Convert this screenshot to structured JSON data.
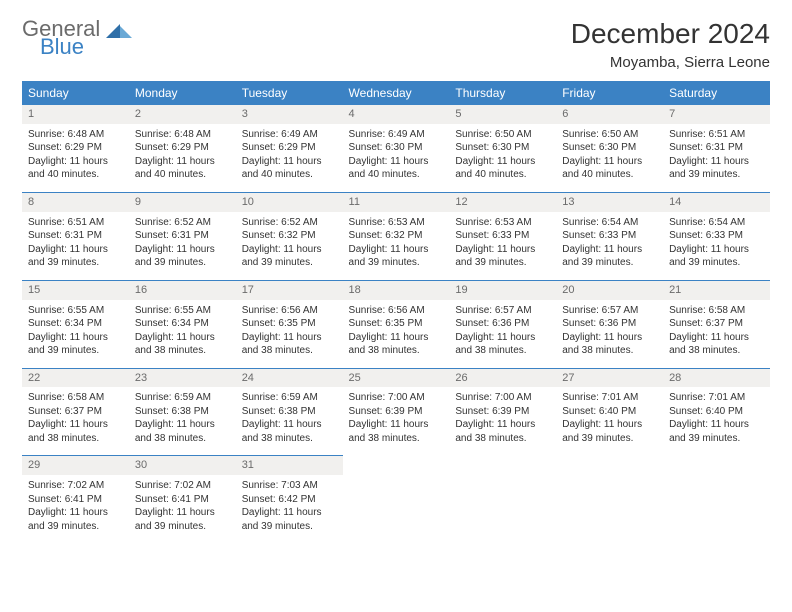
{
  "logo": {
    "word1": "General",
    "word2": "Blue"
  },
  "title": "December 2024",
  "location": "Moyamba, Sierra Leone",
  "colors": {
    "header_bg": "#3b82c4",
    "header_text": "#ffffff",
    "rule": "#3b82c4",
    "daynum_bg": "#f1f0ee",
    "daynum_text": "#6b6b6b",
    "body_text": "#333333",
    "logo_gray": "#6b6b6b",
    "logo_blue": "#3b82c4"
  },
  "weekdays": [
    "Sunday",
    "Monday",
    "Tuesday",
    "Wednesday",
    "Thursday",
    "Friday",
    "Saturday"
  ],
  "weeks": [
    [
      {
        "n": "1",
        "sr": "Sunrise: 6:48 AM",
        "ss": "Sunset: 6:29 PM",
        "d1": "Daylight: 11 hours",
        "d2": "and 40 minutes."
      },
      {
        "n": "2",
        "sr": "Sunrise: 6:48 AM",
        "ss": "Sunset: 6:29 PM",
        "d1": "Daylight: 11 hours",
        "d2": "and 40 minutes."
      },
      {
        "n": "3",
        "sr": "Sunrise: 6:49 AM",
        "ss": "Sunset: 6:29 PM",
        "d1": "Daylight: 11 hours",
        "d2": "and 40 minutes."
      },
      {
        "n": "4",
        "sr": "Sunrise: 6:49 AM",
        "ss": "Sunset: 6:30 PM",
        "d1": "Daylight: 11 hours",
        "d2": "and 40 minutes."
      },
      {
        "n": "5",
        "sr": "Sunrise: 6:50 AM",
        "ss": "Sunset: 6:30 PM",
        "d1": "Daylight: 11 hours",
        "d2": "and 40 minutes."
      },
      {
        "n": "6",
        "sr": "Sunrise: 6:50 AM",
        "ss": "Sunset: 6:30 PM",
        "d1": "Daylight: 11 hours",
        "d2": "and 40 minutes."
      },
      {
        "n": "7",
        "sr": "Sunrise: 6:51 AM",
        "ss": "Sunset: 6:31 PM",
        "d1": "Daylight: 11 hours",
        "d2": "and 39 minutes."
      }
    ],
    [
      {
        "n": "8",
        "sr": "Sunrise: 6:51 AM",
        "ss": "Sunset: 6:31 PM",
        "d1": "Daylight: 11 hours",
        "d2": "and 39 minutes."
      },
      {
        "n": "9",
        "sr": "Sunrise: 6:52 AM",
        "ss": "Sunset: 6:31 PM",
        "d1": "Daylight: 11 hours",
        "d2": "and 39 minutes."
      },
      {
        "n": "10",
        "sr": "Sunrise: 6:52 AM",
        "ss": "Sunset: 6:32 PM",
        "d1": "Daylight: 11 hours",
        "d2": "and 39 minutes."
      },
      {
        "n": "11",
        "sr": "Sunrise: 6:53 AM",
        "ss": "Sunset: 6:32 PM",
        "d1": "Daylight: 11 hours",
        "d2": "and 39 minutes."
      },
      {
        "n": "12",
        "sr": "Sunrise: 6:53 AM",
        "ss": "Sunset: 6:33 PM",
        "d1": "Daylight: 11 hours",
        "d2": "and 39 minutes."
      },
      {
        "n": "13",
        "sr": "Sunrise: 6:54 AM",
        "ss": "Sunset: 6:33 PM",
        "d1": "Daylight: 11 hours",
        "d2": "and 39 minutes."
      },
      {
        "n": "14",
        "sr": "Sunrise: 6:54 AM",
        "ss": "Sunset: 6:33 PM",
        "d1": "Daylight: 11 hours",
        "d2": "and 39 minutes."
      }
    ],
    [
      {
        "n": "15",
        "sr": "Sunrise: 6:55 AM",
        "ss": "Sunset: 6:34 PM",
        "d1": "Daylight: 11 hours",
        "d2": "and 39 minutes."
      },
      {
        "n": "16",
        "sr": "Sunrise: 6:55 AM",
        "ss": "Sunset: 6:34 PM",
        "d1": "Daylight: 11 hours",
        "d2": "and 38 minutes."
      },
      {
        "n": "17",
        "sr": "Sunrise: 6:56 AM",
        "ss": "Sunset: 6:35 PM",
        "d1": "Daylight: 11 hours",
        "d2": "and 38 minutes."
      },
      {
        "n": "18",
        "sr": "Sunrise: 6:56 AM",
        "ss": "Sunset: 6:35 PM",
        "d1": "Daylight: 11 hours",
        "d2": "and 38 minutes."
      },
      {
        "n": "19",
        "sr": "Sunrise: 6:57 AM",
        "ss": "Sunset: 6:36 PM",
        "d1": "Daylight: 11 hours",
        "d2": "and 38 minutes."
      },
      {
        "n": "20",
        "sr": "Sunrise: 6:57 AM",
        "ss": "Sunset: 6:36 PM",
        "d1": "Daylight: 11 hours",
        "d2": "and 38 minutes."
      },
      {
        "n": "21",
        "sr": "Sunrise: 6:58 AM",
        "ss": "Sunset: 6:37 PM",
        "d1": "Daylight: 11 hours",
        "d2": "and 38 minutes."
      }
    ],
    [
      {
        "n": "22",
        "sr": "Sunrise: 6:58 AM",
        "ss": "Sunset: 6:37 PM",
        "d1": "Daylight: 11 hours",
        "d2": "and 38 minutes."
      },
      {
        "n": "23",
        "sr": "Sunrise: 6:59 AM",
        "ss": "Sunset: 6:38 PM",
        "d1": "Daylight: 11 hours",
        "d2": "and 38 minutes."
      },
      {
        "n": "24",
        "sr": "Sunrise: 6:59 AM",
        "ss": "Sunset: 6:38 PM",
        "d1": "Daylight: 11 hours",
        "d2": "and 38 minutes."
      },
      {
        "n": "25",
        "sr": "Sunrise: 7:00 AM",
        "ss": "Sunset: 6:39 PM",
        "d1": "Daylight: 11 hours",
        "d2": "and 38 minutes."
      },
      {
        "n": "26",
        "sr": "Sunrise: 7:00 AM",
        "ss": "Sunset: 6:39 PM",
        "d1": "Daylight: 11 hours",
        "d2": "and 38 minutes."
      },
      {
        "n": "27",
        "sr": "Sunrise: 7:01 AM",
        "ss": "Sunset: 6:40 PM",
        "d1": "Daylight: 11 hours",
        "d2": "and 39 minutes."
      },
      {
        "n": "28",
        "sr": "Sunrise: 7:01 AM",
        "ss": "Sunset: 6:40 PM",
        "d1": "Daylight: 11 hours",
        "d2": "and 39 minutes."
      }
    ],
    [
      {
        "n": "29",
        "sr": "Sunrise: 7:02 AM",
        "ss": "Sunset: 6:41 PM",
        "d1": "Daylight: 11 hours",
        "d2": "and 39 minutes."
      },
      {
        "n": "30",
        "sr": "Sunrise: 7:02 AM",
        "ss": "Sunset: 6:41 PM",
        "d1": "Daylight: 11 hours",
        "d2": "and 39 minutes."
      },
      {
        "n": "31",
        "sr": "Sunrise: 7:03 AM",
        "ss": "Sunset: 6:42 PM",
        "d1": "Daylight: 11 hours",
        "d2": "and 39 minutes."
      },
      null,
      null,
      null,
      null
    ]
  ]
}
